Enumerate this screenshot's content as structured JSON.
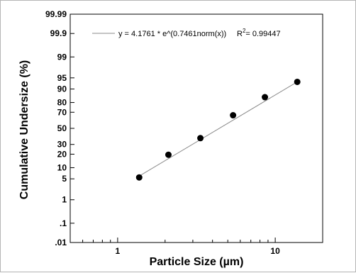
{
  "chart_data": {
    "type": "scatter",
    "title": "",
    "xlabel": "Particle Size (µm)",
    "ylabel": "Cumulative Undersize (%)",
    "x_scale": "log",
    "y_scale": "probability",
    "xlim": [
      0.5,
      20
    ],
    "ylim": [
      0.01,
      99.99
    ],
    "x_ticks": [
      {
        "value": 1,
        "label": "1"
      },
      {
        "value": 10,
        "label": "10"
      }
    ],
    "y_ticks": [
      {
        "value": 0.01,
        "label": ".01"
      },
      {
        "value": 0.1,
        "label": ".1"
      },
      {
        "value": 1,
        "label": "1"
      },
      {
        "value": 5,
        "label": "5"
      },
      {
        "value": 10,
        "label": "10"
      },
      {
        "value": 20,
        "label": "20"
      },
      {
        "value": 30,
        "label": "30"
      },
      {
        "value": 50,
        "label": "50"
      },
      {
        "value": 70,
        "label": "70"
      },
      {
        "value": 80,
        "label": "80"
      },
      {
        "value": 90,
        "label": "90"
      },
      {
        "value": 95,
        "label": "95"
      },
      {
        "value": 99,
        "label": "99"
      },
      {
        "value": 99.9,
        "label": "99.9"
      },
      {
        "value": 99.99,
        "label": "99.99"
      }
    ],
    "series": [
      {
        "points": [
          {
            "x": 1.37,
            "y": 5.5
          },
          {
            "x": 2.1,
            "y": 19.5
          },
          {
            "x": 3.35,
            "y": 37.5
          },
          {
            "x": 5.4,
            "y": 66.5
          },
          {
            "x": 8.6,
            "y": 84.5
          },
          {
            "x": 13.8,
            "y": 93.5
          }
        ]
      }
    ],
    "fit": {
      "equation_text": "y = 4.1761 * e^(0.7461norm(x))",
      "r2_prefix": "R",
      "r2_sup": "2",
      "r2_suffix": "= 0.99447",
      "line_start": {
        "x": 1.37,
        "y": 6.0
      },
      "line_end": {
        "x": 13.8,
        "y": 93.5
      }
    },
    "legend_position": "top",
    "grid": false
  }
}
